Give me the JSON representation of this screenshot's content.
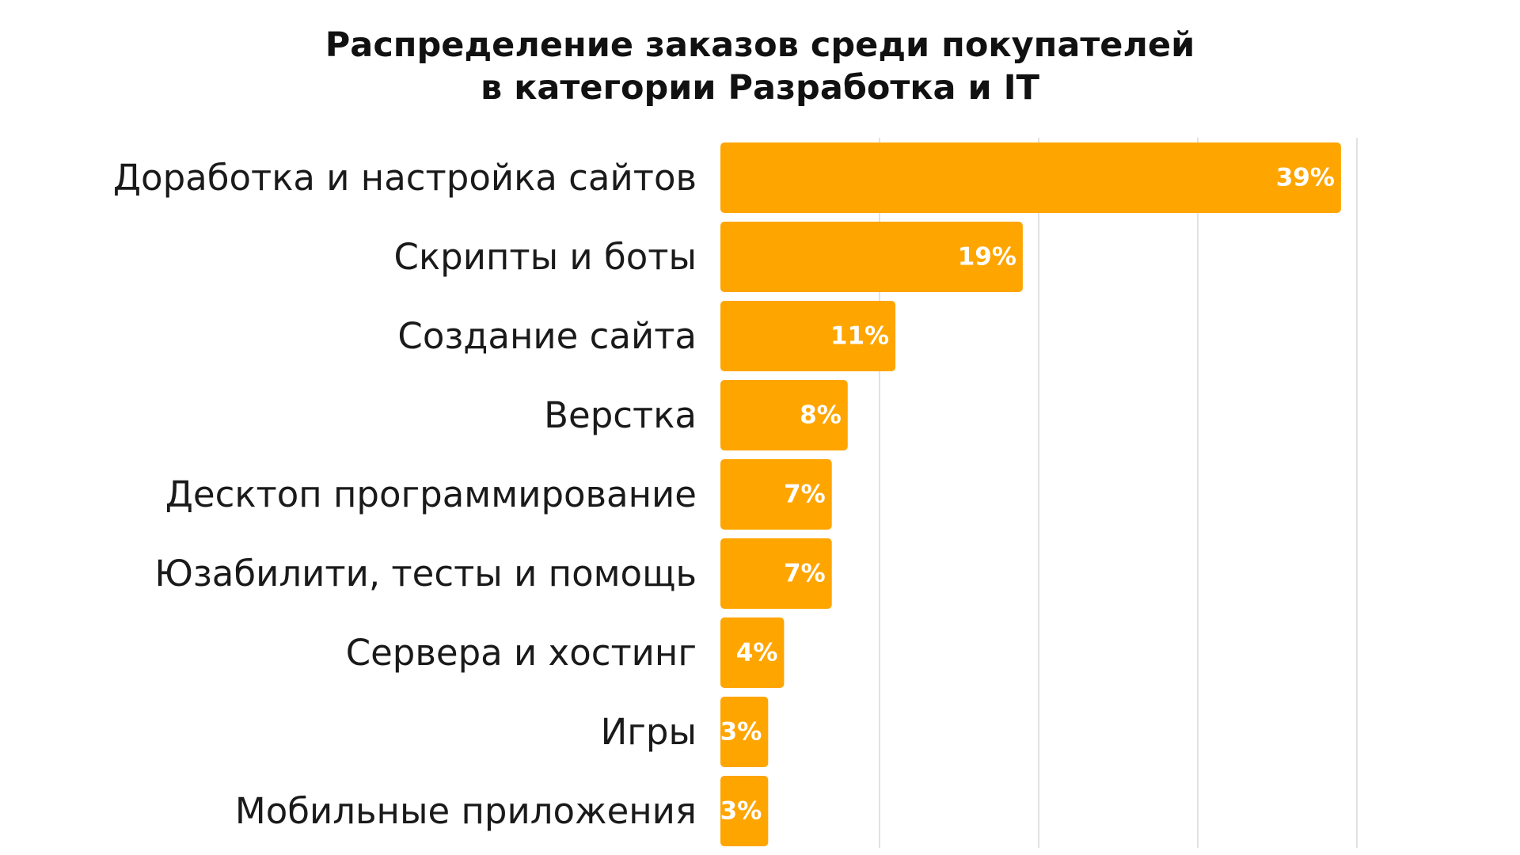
{
  "chart_data": {
    "type": "bar",
    "orientation": "horizontal",
    "title_lines": [
      "Распределение заказов среди покупателей",
      "в категории Разработка и IT"
    ],
    "categories": [
      "Доработка и настройка сайтов",
      "Скрипты и боты",
      "Создание сайта",
      "Верстка",
      "Десктоп программирование",
      "Юзабилити, тесты и помощь",
      "Сервера и хостинг",
      "Игры",
      "Мобильные приложения"
    ],
    "values": [
      39,
      19,
      11,
      8,
      7,
      7,
      4,
      3,
      3
    ],
    "value_labels": [
      "39%",
      "19%",
      "11%",
      "8%",
      "7%",
      "7%",
      "4%",
      "3%",
      "3%"
    ],
    "unit": "%",
    "xlim": [
      0,
      40
    ],
    "grid": true,
    "legend": "none",
    "bar_color": "#ffa500",
    "grid_color": "#d9d9d9",
    "label_color": "#ffffff"
  }
}
